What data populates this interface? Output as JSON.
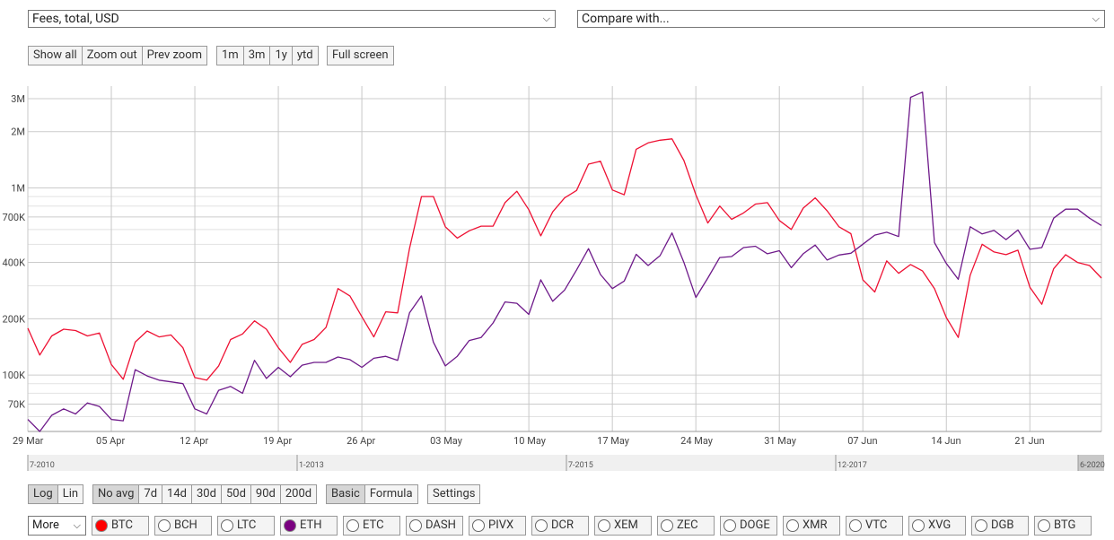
{
  "metric_select": {
    "value": "Fees, total, USD"
  },
  "compare_select": {
    "value": "Compare with..."
  },
  "zoom_buttons": [
    "Show all",
    "Zoom out",
    "Prev zoom"
  ],
  "range_buttons": [
    "1m",
    "3m",
    "1y",
    "ytd"
  ],
  "fullscreen_label": "Full screen",
  "scale_buttons": [
    {
      "label": "Log",
      "active": true
    },
    {
      "label": "Lin",
      "active": false
    }
  ],
  "avg_buttons": [
    {
      "label": "No avg",
      "active": true
    },
    {
      "label": "7d"
    },
    {
      "label": "14d"
    },
    {
      "label": "30d"
    },
    {
      "label": "50d"
    },
    {
      "label": "90d"
    },
    {
      "label": "200d"
    }
  ],
  "mode_buttons": [
    {
      "label": "Basic",
      "active": true
    },
    {
      "label": "Formula",
      "active": false
    }
  ],
  "settings_label": "Settings",
  "more_select": {
    "value": "More"
  },
  "coins": [
    {
      "label": "BTC",
      "selected": true,
      "color": "#ff0000"
    },
    {
      "label": "BCH",
      "selected": false
    },
    {
      "label": "LTC",
      "selected": false
    },
    {
      "label": "ETH",
      "selected": true,
      "color": "#7a0080"
    },
    {
      "label": "ETC",
      "selected": false
    },
    {
      "label": "DASH",
      "selected": false
    },
    {
      "label": "PIVX",
      "selected": false
    },
    {
      "label": "DCR",
      "selected": false
    },
    {
      "label": "XEM",
      "selected": false
    },
    {
      "label": "ZEC",
      "selected": false
    },
    {
      "label": "DOGE",
      "selected": false
    },
    {
      "label": "XMR",
      "selected": false
    },
    {
      "label": "VTC",
      "selected": false
    },
    {
      "label": "XVG",
      "selected": false
    },
    {
      "label": "DGB",
      "selected": false
    },
    {
      "label": "BTG",
      "selected": false
    }
  ],
  "navigator_labels": [
    "7-2010",
    "1-2013",
    "7-2015",
    "12-2017",
    "6-2020"
  ],
  "chart_data": {
    "type": "line",
    "title": "",
    "scale": "log",
    "y_range": [
      50000,
      3500000
    ],
    "y_ticks": [
      {
        "v": 3000000,
        "label": "3M"
      },
      {
        "v": 2000000,
        "label": "2M"
      },
      {
        "v": 1000000,
        "label": "1M"
      },
      {
        "v": 700000,
        "label": "700K"
      },
      {
        "v": 400000,
        "label": "400K"
      },
      {
        "v": 200000,
        "label": "200K"
      },
      {
        "v": 100000,
        "label": "100K"
      },
      {
        "v": 70000,
        "label": "70K"
      }
    ],
    "y_minor": [
      60000,
      80000,
      90000,
      300000,
      500000,
      600000,
      800000,
      900000
    ],
    "x_ticks": [
      "29 Mar",
      "05 Apr",
      "12 Apr",
      "19 Apr",
      "26 Apr",
      "03 May",
      "10 May",
      "17 May",
      "24 May",
      "31 May",
      "07 Jun",
      "14 Jun",
      "21 Jun"
    ],
    "x_start": "29 Mar",
    "x_points_per_day": 1,
    "series": [
      {
        "color": "#ee1133",
        "values": [
          178000,
          128000,
          162000,
          176000,
          173000,
          162000,
          168000,
          114000,
          95000,
          150000,
          172000,
          160000,
          164000,
          140000,
          97000,
          94000,
          112000,
          155000,
          166000,
          195000,
          176000,
          140000,
          117000,
          146000,
          155000,
          180000,
          290000,
          265000,
          205000,
          160000,
          218000,
          215000,
          475000,
          900000,
          900000,
          620000,
          540000,
          590000,
          625000,
          625000,
          835000,
          960000,
          765000,
          555000,
          745000,
          885000,
          970000,
          1340000,
          1390000,
          975000,
          920000,
          1610000,
          1740000,
          1800000,
          1830000,
          1400000,
          920000,
          650000,
          800000,
          680000,
          735000,
          820000,
          835000,
          670000,
          600000,
          780000,
          885000,
          755000,
          620000,
          570000,
          323000,
          278000,
          408000,
          350000,
          390000,
          360000,
          290000,
          203000,
          159000,
          342000,
          500000,
          455000,
          440000,
          465000,
          295000,
          239000,
          370000,
          440000,
          400000,
          385000,
          330000
        ]
      },
      {
        "color": "#6e1a8a",
        "values": [
          58000,
          50000,
          61000,
          66000,
          62000,
          71000,
          68000,
          58000,
          57000,
          107000,
          99000,
          94000,
          92000,
          90000,
          66000,
          62000,
          83000,
          87000,
          80000,
          120000,
          96000,
          110000,
          98000,
          113000,
          117000,
          117000,
          125000,
          121000,
          110000,
          123000,
          126000,
          120000,
          215000,
          265000,
          150000,
          112000,
          126000,
          153000,
          159000,
          190000,
          246000,
          242000,
          211000,
          323000,
          248000,
          285000,
          365000,
          474000,
          345000,
          290000,
          318000,
          442000,
          385000,
          435000,
          575000,
          400000,
          260000,
          330000,
          425000,
          430000,
          480000,
          488000,
          445000,
          462000,
          375000,
          445000,
          495000,
          412000,
          438000,
          448000,
          500000,
          560000,
          580000,
          550000,
          3050000,
          3250000,
          510000,
          395000,
          325000,
          620000,
          568000,
          593000,
          530000,
          596000,
          470000,
          480000,
          690000,
          770000,
          770000,
          690000,
          630000
        ]
      }
    ]
  }
}
